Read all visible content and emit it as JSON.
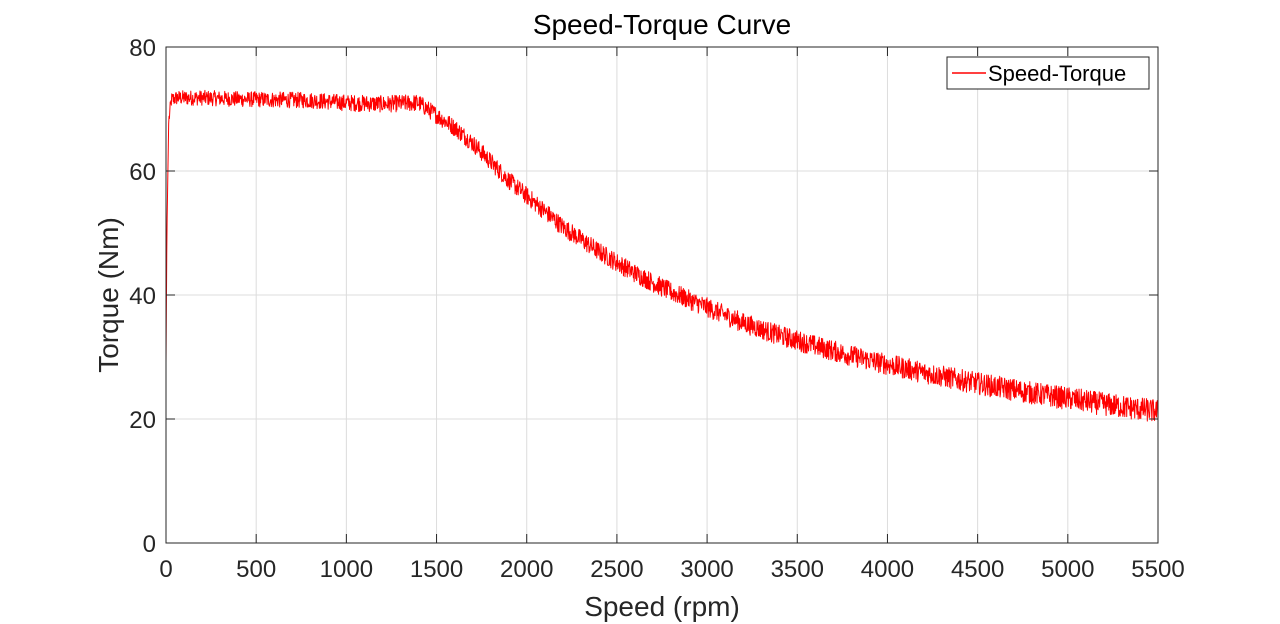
{
  "chart_data": {
    "type": "line",
    "title": "Speed-Torque Curve",
    "xlabel": "Speed (rpm)",
    "ylabel": "Torque (Nm)",
    "xlim": [
      0,
      5500
    ],
    "ylim": [
      0,
      80
    ],
    "xticks": [
      0,
      500,
      1000,
      1500,
      2000,
      2500,
      3000,
      3500,
      4000,
      4500,
      5000,
      5500
    ],
    "yticks": [
      0,
      20,
      40,
      60,
      80
    ],
    "grid": true,
    "legend_position": "top-right",
    "series": [
      {
        "name": "Speed-Torque",
        "color": "#ff0000",
        "x": [
          0,
          5,
          15,
          30,
          60,
          100,
          200,
          400,
          600,
          800,
          1000,
          1200,
          1400,
          1500,
          1600,
          1700,
          1800,
          1900,
          2000,
          2200,
          2400,
          2600,
          2800,
          3000,
          3200,
          3400,
          3600,
          3800,
          4000,
          4200,
          4400,
          4600,
          4800,
          5000,
          5200,
          5400,
          5500
        ],
        "y": [
          29,
          50,
          68,
          71.5,
          71.8,
          71.8,
          71.8,
          71.6,
          71.5,
          71.4,
          71.0,
          70.8,
          71.0,
          69.0,
          67.0,
          64.5,
          61.5,
          58.5,
          56.0,
          51.0,
          47.0,
          43.5,
          40.5,
          38.0,
          35.5,
          33.5,
          31.8,
          30.2,
          28.8,
          27.5,
          26.3,
          25.2,
          24.2,
          23.3,
          22.4,
          21.6,
          21.2
        ],
        "noise_band": 1.2
      }
    ]
  }
}
